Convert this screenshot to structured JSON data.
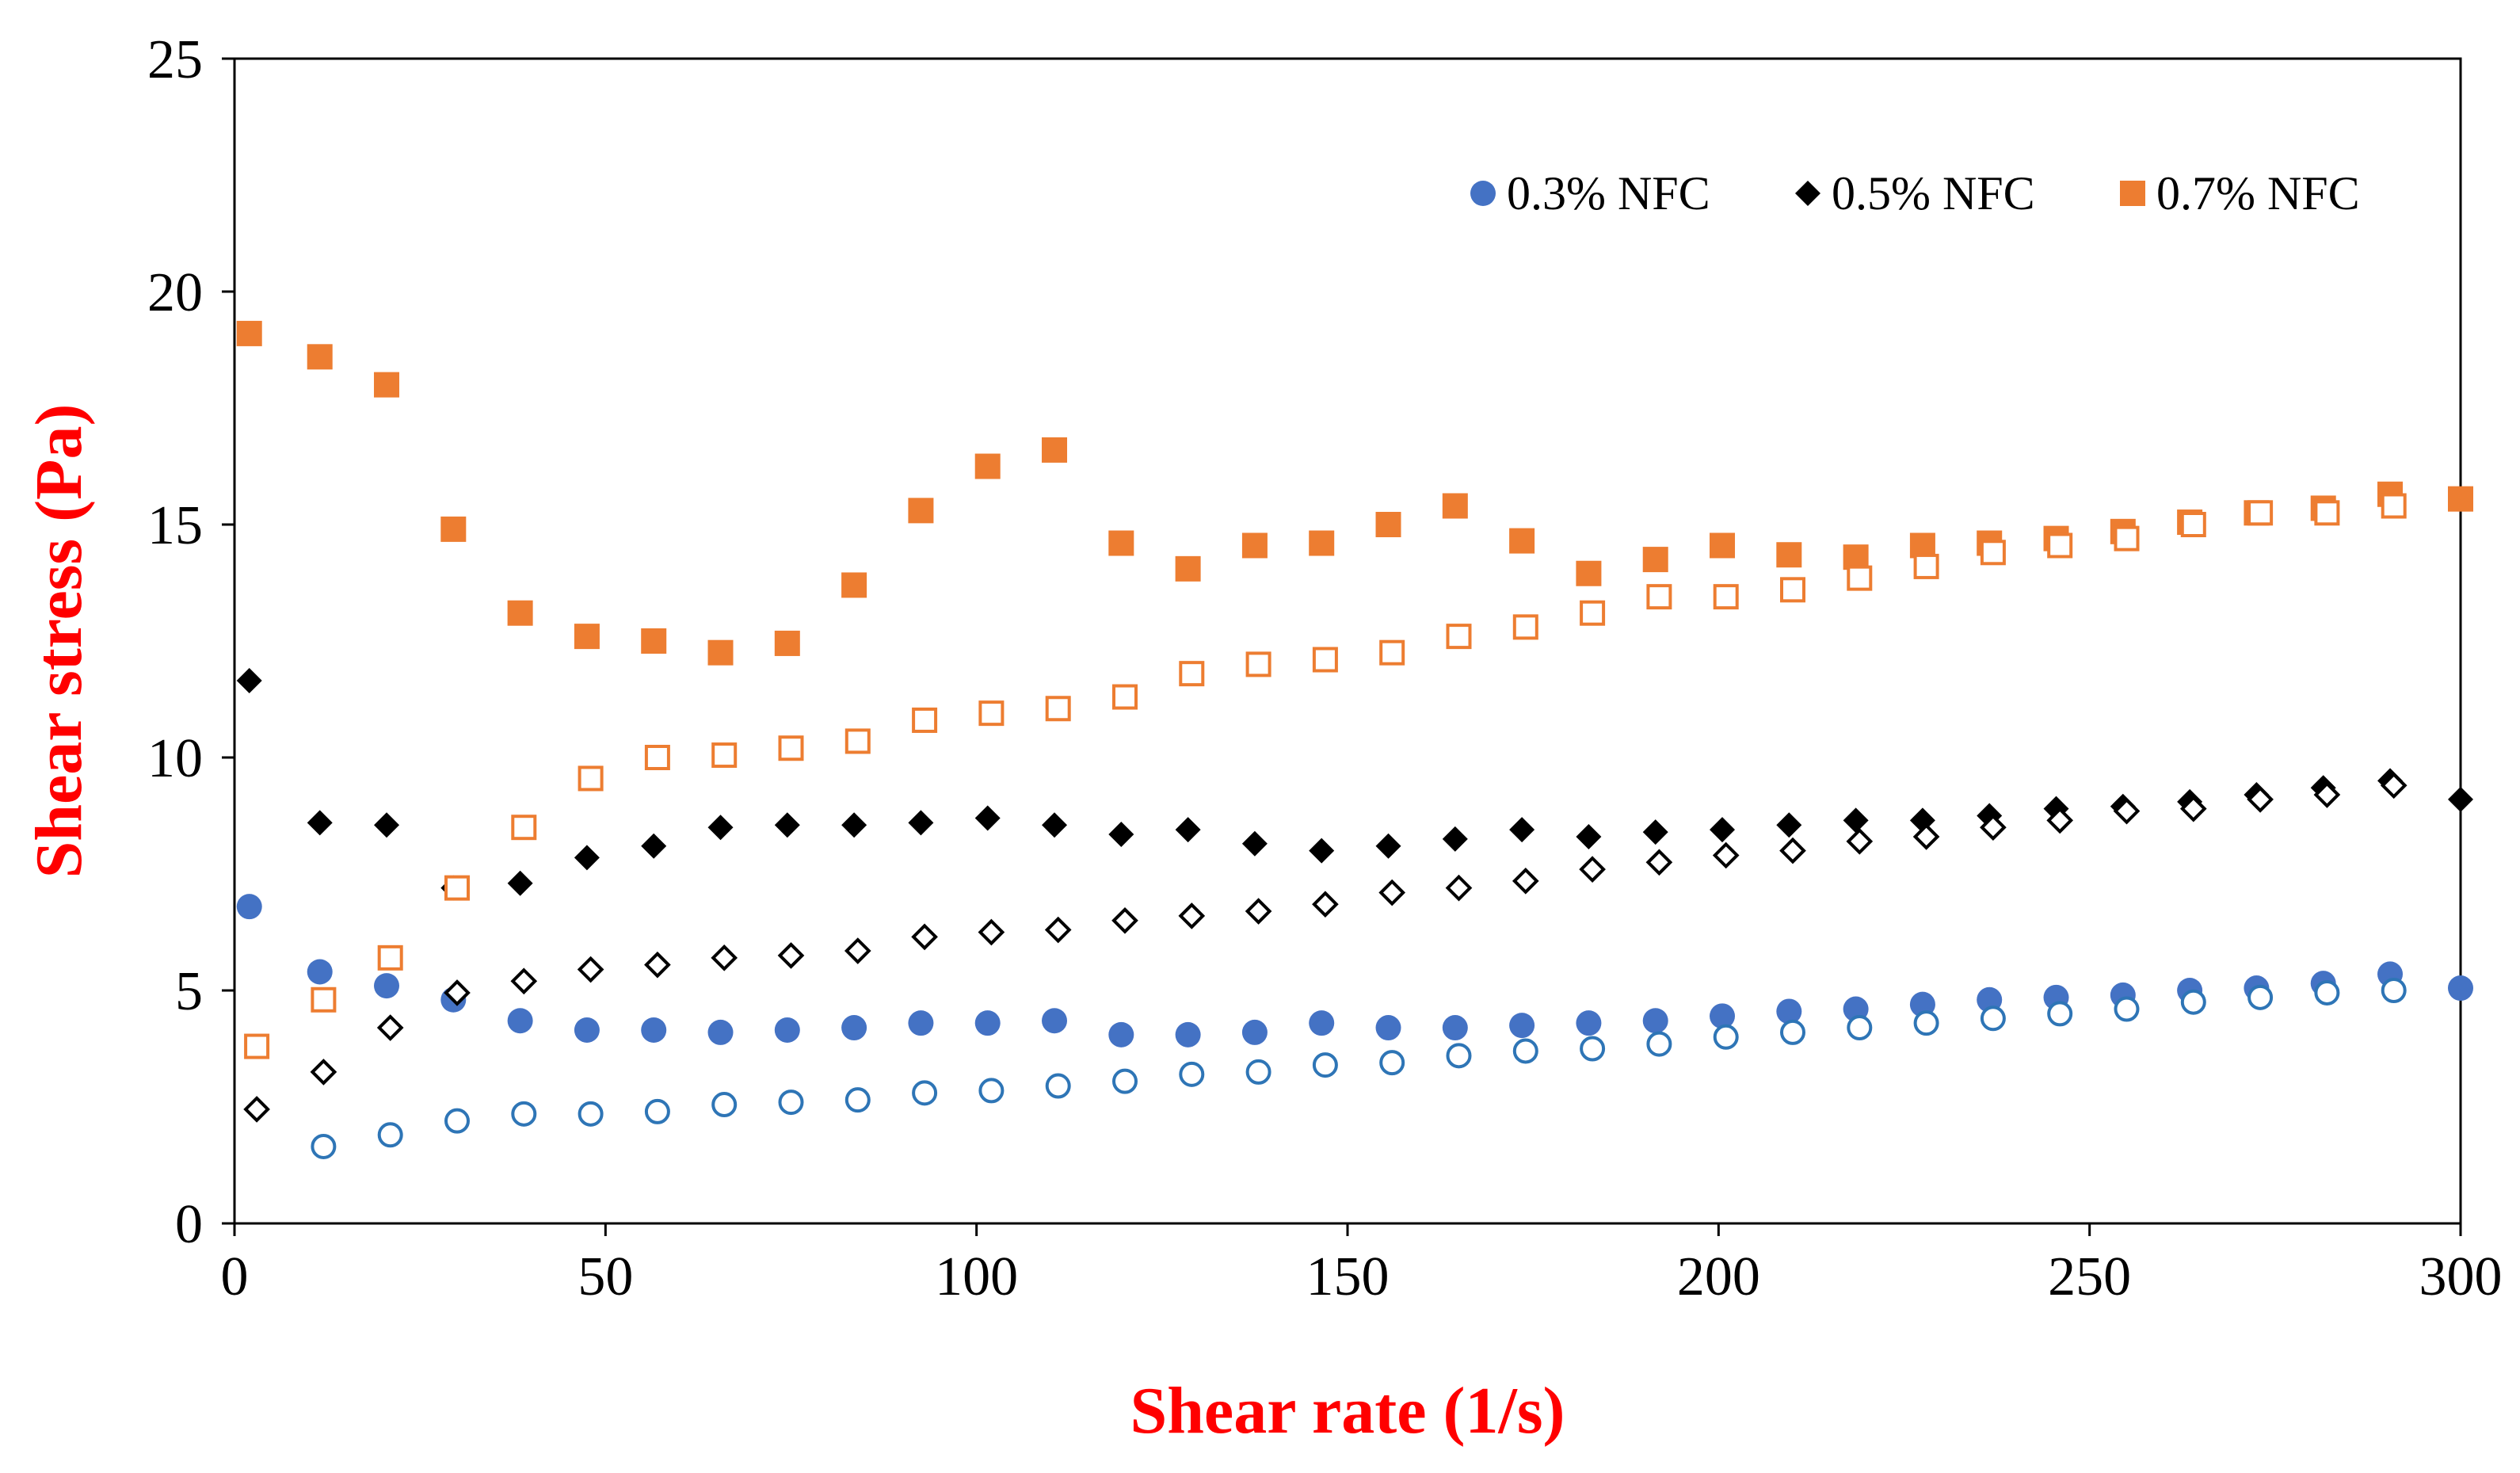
{
  "chart_data": {
    "type": "scatter",
    "title": "",
    "xlabel": "Shear rate (1/s)",
    "ylabel": "Shear stress (Pa)",
    "xlim": [
      0,
      300
    ],
    "ylim": [
      0,
      25
    ],
    "xticks": [
      0,
      50,
      100,
      150,
      200,
      250,
      300
    ],
    "yticks": [
      0,
      5,
      10,
      15,
      20,
      25
    ],
    "grid": false,
    "legend_position": "top-right",
    "colors": {
      "blue": "#4472C4",
      "blue_open": "#2E75B6",
      "black": "#000000",
      "orange": "#ED7D31",
      "axis_title": "#FF0000"
    },
    "legend": [
      {
        "label": "0.3% NFC",
        "marker": "circle",
        "color": "#4472C4"
      },
      {
        "label": "0.5% NFC",
        "marker": "diamond",
        "color": "#000000"
      },
      {
        "label": "0.7% NFC",
        "marker": "square",
        "color": "#ED7D31"
      }
    ],
    "series": [
      {
        "name": "0.3% NFC (filled)",
        "marker": "circle",
        "filled": true,
        "color": "#4472C4",
        "x": [
          2,
          11.5,
          20.5,
          29.5,
          38.5,
          47.5,
          56.5,
          65.5,
          74.5,
          83.5,
          92.5,
          101.5,
          110.5,
          119.5,
          128.5,
          137.5,
          146.5,
          155.5,
          164.5,
          173.5,
          182.5,
          191.5,
          200.5,
          209.5,
          218.5,
          227.5,
          236.5,
          245.5,
          254.5,
          263.5,
          272.5,
          281.5,
          290.5,
          300
        ],
        "y": [
          6.8,
          5.4,
          5.1,
          4.8,
          4.35,
          4.15,
          4.15,
          4.1,
          4.15,
          4.2,
          4.3,
          4.3,
          4.35,
          4.05,
          4.05,
          4.1,
          4.3,
          4.2,
          4.2,
          4.25,
          4.3,
          4.35,
          4.45,
          4.55,
          4.6,
          4.7,
          4.8,
          4.85,
          4.9,
          5.0,
          5.05,
          5.15,
          5.35,
          5.05
        ]
      },
      {
        "name": "0.3% NFC (open)",
        "marker": "circle",
        "filled": false,
        "color": "#2E75B6",
        "x": [
          12,
          21,
          30,
          39,
          48,
          57,
          66,
          75,
          84,
          93,
          102,
          111,
          120,
          129,
          138,
          147,
          156,
          165,
          174,
          183,
          192,
          201,
          210,
          219,
          228,
          237,
          246,
          255,
          264,
          273,
          282,
          291
        ],
        "y": [
          1.65,
          1.9,
          2.2,
          2.35,
          2.35,
          2.4,
          2.55,
          2.6,
          2.65,
          2.8,
          2.85,
          2.95,
          3.05,
          3.2,
          3.25,
          3.4,
          3.45,
          3.6,
          3.7,
          3.75,
          3.85,
          4.0,
          4.1,
          4.2,
          4.3,
          4.4,
          4.5,
          4.6,
          4.75,
          4.85,
          4.95,
          5.0
        ]
      },
      {
        "name": "0.5% NFC (filled)",
        "marker": "diamond",
        "filled": true,
        "color": "#000000",
        "x": [
          2,
          11.5,
          20.5,
          29.5,
          38.5,
          47.5,
          56.5,
          65.5,
          74.5,
          83.5,
          92.5,
          101.5,
          110.5,
          119.5,
          128.5,
          137.5,
          146.5,
          155.5,
          164.5,
          173.5,
          182.5,
          191.5,
          200.5,
          209.5,
          218.5,
          227.5,
          236.5,
          245.5,
          254.5,
          263.5,
          272.5,
          281.5,
          290.5,
          300
        ],
        "y": [
          11.65,
          8.6,
          8.55,
          7.2,
          7.3,
          7.85,
          8.1,
          8.5,
          8.55,
          8.55,
          8.6,
          8.7,
          8.55,
          8.35,
          8.45,
          8.15,
          8.0,
          8.1,
          8.25,
          8.45,
          8.3,
          8.4,
          8.45,
          8.55,
          8.65,
          8.65,
          8.75,
          8.9,
          8.95,
          9.05,
          9.2,
          9.35,
          9.5,
          9.1
        ]
      },
      {
        "name": "0.5% NFC (open)",
        "marker": "diamond",
        "filled": false,
        "color": "#000000",
        "x": [
          3,
          12,
          21,
          30,
          39,
          48,
          57,
          66,
          75,
          84,
          93,
          102,
          111,
          120,
          129,
          138,
          147,
          156,
          165,
          174,
          183,
          192,
          201,
          210,
          219,
          228,
          237,
          246,
          255,
          264,
          273,
          282,
          291
        ],
        "y": [
          2.45,
          3.25,
          4.2,
          4.95,
          5.2,
          5.45,
          5.55,
          5.7,
          5.75,
          5.85,
          6.15,
          6.25,
          6.3,
          6.5,
          6.6,
          6.7,
          6.85,
          7.1,
          7.2,
          7.35,
          7.6,
          7.75,
          7.9,
          8.0,
          8.2,
          8.3,
          8.5,
          8.65,
          8.85,
          8.9,
          9.1,
          9.2,
          9.4
        ]
      },
      {
        "name": "0.7% NFC (filled)",
        "marker": "square",
        "filled": true,
        "color": "#ED7D31",
        "x": [
          2,
          11.5,
          20.5,
          29.5,
          38.5,
          47.5,
          56.5,
          65.5,
          74.5,
          83.5,
          92.5,
          101.5,
          110.5,
          119.5,
          128.5,
          137.5,
          146.5,
          155.5,
          164.5,
          173.5,
          182.5,
          191.5,
          200.5,
          209.5,
          218.5,
          227.5,
          236.5,
          245.5,
          254.5,
          263.5,
          272.5,
          281.5,
          290.5,
          300
        ],
        "y": [
          19.1,
          18.6,
          18.0,
          14.9,
          13.1,
          12.6,
          12.5,
          12.25,
          12.45,
          13.7,
          15.3,
          16.25,
          16.6,
          14.6,
          14.05,
          14.55,
          14.6,
          15.0,
          15.4,
          14.65,
          13.95,
          14.25,
          14.55,
          14.35,
          14.3,
          14.55,
          14.6,
          14.7,
          14.85,
          15.05,
          15.25,
          15.35,
          15.65,
          15.55
        ]
      },
      {
        "name": "0.7% NFC (open)",
        "marker": "square",
        "filled": false,
        "color": "#ED7D31",
        "x": [
          3,
          12,
          21,
          30,
          39,
          48,
          57,
          66,
          75,
          84,
          93,
          102,
          111,
          120,
          129,
          138,
          147,
          156,
          165,
          174,
          183,
          192,
          201,
          210,
          219,
          228,
          237,
          246,
          255,
          264,
          273,
          282,
          291
        ],
        "y": [
          3.8,
          4.8,
          5.7,
          7.2,
          8.5,
          9.55,
          10.0,
          10.05,
          10.2,
          10.35,
          10.8,
          10.95,
          11.05,
          11.3,
          11.8,
          12.0,
          12.1,
          12.25,
          12.6,
          12.8,
          13.1,
          13.45,
          13.45,
          13.6,
          13.85,
          14.1,
          14.4,
          14.55,
          14.7,
          15.0,
          15.25,
          15.25,
          15.4
        ]
      }
    ]
  }
}
